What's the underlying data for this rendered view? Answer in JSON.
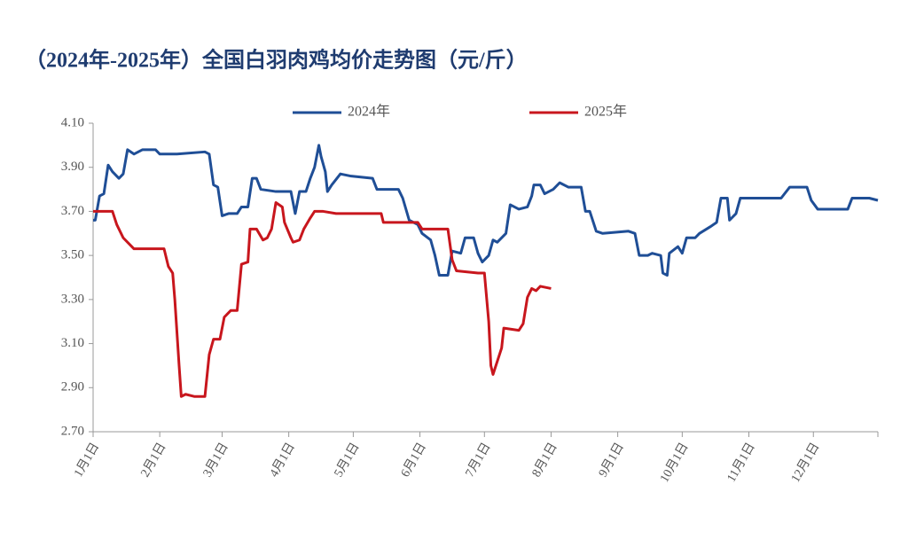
{
  "chart_data": {
    "type": "line",
    "title": "（2024年-2025年）全国白羽肉鸡均价走势图（元/斤）",
    "xlim": [
      0,
      365
    ],
    "xticks": [
      {
        "value": 0,
        "label": "1月1日"
      },
      {
        "value": 31,
        "label": "2月1日"
      },
      {
        "value": 60,
        "label": "3月1日"
      },
      {
        "value": 91,
        "label": "4月1日"
      },
      {
        "value": 121,
        "label": "5月1日"
      },
      {
        "value": 152,
        "label": "6月1日"
      },
      {
        "value": 182,
        "label": "7月1日"
      },
      {
        "value": 213,
        "label": "8月1日"
      },
      {
        "value": 244,
        "label": "9月1日"
      },
      {
        "value": 274,
        "label": "10月1日"
      },
      {
        "value": 305,
        "label": "11月1日"
      },
      {
        "value": 335,
        "label": "12月1日"
      }
    ],
    "ylim": [
      2.7,
      4.1
    ],
    "yticks": [
      {
        "value": 2.7,
        "label": "2.70"
      },
      {
        "value": 2.9,
        "label": "2.90"
      },
      {
        "value": 3.1,
        "label": "3.10"
      },
      {
        "value": 3.3,
        "label": "3.30"
      },
      {
        "value": 3.5,
        "label": "3.50"
      },
      {
        "value": 3.7,
        "label": "3.70"
      },
      {
        "value": 3.9,
        "label": "3.90"
      },
      {
        "value": 4.1,
        "label": "4.10"
      }
    ],
    "series": [
      {
        "name": "2024年",
        "color": "#1f4e96",
        "x": [
          0,
          1,
          3,
          5,
          7,
          9,
          12,
          14,
          16,
          19,
          23,
          29,
          31,
          39,
          52,
          54,
          56,
          58,
          60,
          63,
          67,
          69,
          72,
          74,
          76,
          78,
          85,
          92,
          94,
          96,
          99,
          101,
          103,
          105,
          106,
          108,
          109,
          111,
          115,
          120,
          130,
          132,
          142,
          144,
          147,
          151,
          153,
          157,
          159,
          161,
          165,
          167,
          171,
          173,
          177,
          179,
          181,
          184,
          186,
          188,
          192,
          194,
          198,
          202,
          204,
          205,
          208,
          210,
          214,
          217,
          221,
          227,
          229,
          231,
          234,
          237,
          249,
          252,
          254,
          258,
          260,
          264,
          265,
          267,
          268,
          272,
          274,
          276,
          280,
          282,
          287,
          290,
          292,
          295,
          296,
          299,
          301,
          320,
          324,
          332,
          334,
          337,
          346,
          351,
          353,
          361,
          365
        ],
        "values": [
          3.66,
          3.66,
          3.77,
          3.78,
          3.91,
          3.88,
          3.85,
          3.87,
          3.98,
          3.96,
          3.98,
          3.98,
          3.96,
          3.96,
          3.97,
          3.96,
          3.82,
          3.81,
          3.68,
          3.69,
          3.69,
          3.72,
          3.72,
          3.85,
          3.85,
          3.8,
          3.79,
          3.79,
          3.69,
          3.79,
          3.79,
          3.85,
          3.9,
          4.0,
          3.95,
          3.88,
          3.79,
          3.82,
          3.87,
          3.86,
          3.85,
          3.8,
          3.8,
          3.76,
          3.66,
          3.64,
          3.6,
          3.57,
          3.5,
          3.41,
          3.41,
          3.52,
          3.51,
          3.58,
          3.58,
          3.51,
          3.47,
          3.5,
          3.57,
          3.56,
          3.6,
          3.73,
          3.71,
          3.72,
          3.77,
          3.82,
          3.82,
          3.78,
          3.8,
          3.83,
          3.81,
          3.81,
          3.7,
          3.7,
          3.61,
          3.6,
          3.61,
          3.6,
          3.5,
          3.5,
          3.51,
          3.5,
          3.42,
          3.41,
          3.51,
          3.54,
          3.51,
          3.58,
          3.58,
          3.6,
          3.63,
          3.65,
          3.76,
          3.76,
          3.66,
          3.69,
          3.76,
          3.76,
          3.81,
          3.81,
          3.75,
          3.71,
          3.71,
          3.71,
          3.76,
          3.76,
          3.75
        ]
      },
      {
        "name": "2025年",
        "color": "#c8161d",
        "x": [
          0,
          9,
          11,
          14,
          19,
          33,
          35,
          37,
          38,
          40,
          41,
          43,
          47,
          52,
          54,
          56,
          59,
          61,
          64,
          67,
          69,
          72,
          73,
          76,
          79,
          81,
          83,
          85,
          88,
          89,
          92,
          93,
          96,
          98,
          101,
          103,
          107,
          113,
          122,
          134,
          135,
          151,
          153,
          165,
          167,
          169,
          179,
          182,
          184,
          185,
          186,
          190,
          191,
          198,
          200,
          202,
          204,
          206,
          208,
          213
        ],
        "values": [
          3.7,
          3.7,
          3.64,
          3.58,
          3.53,
          3.53,
          3.45,
          3.42,
          3.3,
          3.0,
          2.86,
          2.87,
          2.86,
          2.86,
          3.05,
          3.12,
          3.12,
          3.22,
          3.25,
          3.25,
          3.46,
          3.47,
          3.62,
          3.62,
          3.57,
          3.58,
          3.62,
          3.74,
          3.72,
          3.65,
          3.58,
          3.56,
          3.57,
          3.62,
          3.67,
          3.7,
          3.7,
          3.69,
          3.69,
          3.69,
          3.65,
          3.65,
          3.62,
          3.62,
          3.48,
          3.43,
          3.42,
          3.42,
          3.2,
          3.0,
          2.96,
          3.08,
          3.17,
          3.16,
          3.19,
          3.31,
          3.35,
          3.34,
          3.36,
          3.35
        ]
      }
    ]
  }
}
